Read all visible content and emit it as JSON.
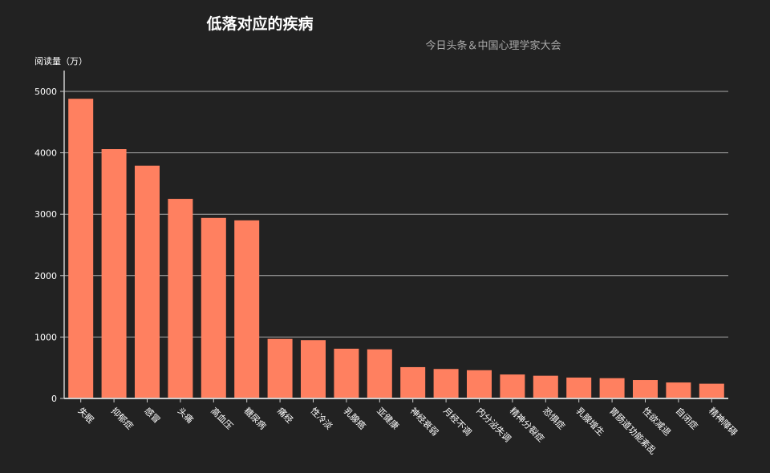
{
  "chart_data": {
    "type": "bar",
    "title": "低落对应的疾病",
    "subtitle": "今日头条＆中国心理学家大会",
    "ylabel": "阅读量（万）",
    "xlabel": "",
    "ylim": [
      0,
      5000
    ],
    "yticks": [
      0,
      1000,
      2000,
      3000,
      4000,
      5000
    ],
    "grid": true,
    "bar_color": "#ff8060",
    "background": "#222222",
    "categories": [
      "失眠",
      "抑郁症",
      "感冒",
      "头痛",
      "高血压",
      "糖尿病",
      "痛经",
      "性冷淡",
      "乳腺癌",
      "亚健康",
      "神经衰弱",
      "月经不调",
      "内分泌失调",
      "精神分裂症",
      "恐惧症",
      "乳腺增生",
      "胃肠道功能紊乱",
      "性欲减退",
      "自闭症",
      "精神障碍"
    ],
    "values": [
      4880,
      4060,
      3790,
      3250,
      2940,
      2900,
      970,
      950,
      810,
      800,
      510,
      480,
      460,
      390,
      370,
      340,
      330,
      300,
      260,
      240
    ]
  }
}
